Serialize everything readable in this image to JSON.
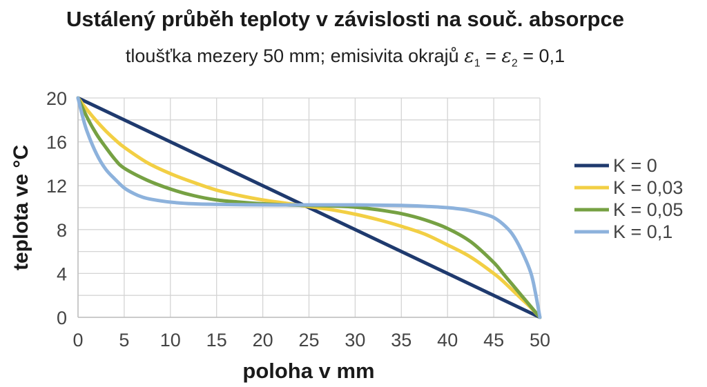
{
  "chart_data": {
    "type": "line",
    "title": "Ustálený průběh teploty v závislosti na souč. absorpce",
    "subtitle": {
      "prefix": "tloušťka mezery 50 mm; emisivita okrajů ",
      "eps": "ε",
      "sub1": "1",
      "eq1": " = ",
      "sub2": "2",
      "eq2": " = 0,1"
    },
    "xlabel": "poloha v mm",
    "ylabel": "teplota ve °C",
    "xlim": [
      0,
      50
    ],
    "ylim": [
      0,
      20
    ],
    "xticks": [
      "0",
      "5",
      "10",
      "15",
      "20",
      "25",
      "30",
      "35",
      "40",
      "45",
      "50"
    ],
    "yticks": [
      "0",
      "4",
      "8",
      "12",
      "16",
      "20"
    ],
    "grid": true,
    "legend_position": "right",
    "series": [
      {
        "name": "K = 0",
        "color": "#1f3a6e",
        "x": [
          0,
          50
        ],
        "y": [
          20,
          0
        ]
      },
      {
        "name": "K = 0,03",
        "color": "#f2cf44",
        "x": [
          0,
          1,
          2,
          3,
          4,
          5,
          7.5,
          10,
          12.5,
          15,
          17.5,
          20,
          22.5,
          25,
          27.5,
          30,
          32.5,
          35,
          37.5,
          40,
          42.5,
          45,
          46,
          47,
          48,
          49,
          50
        ],
        "y": [
          20,
          18.9,
          17.9,
          17.0,
          16.2,
          15.5,
          14.1,
          13.1,
          12.3,
          11.6,
          11.1,
          10.7,
          10.4,
          10.1,
          9.8,
          9.4,
          8.9,
          8.3,
          7.6,
          6.6,
          5.5,
          4.0,
          3.3,
          2.5,
          1.7,
          0.9,
          0
        ]
      },
      {
        "name": "K = 0,05",
        "color": "#76a143",
        "x": [
          0,
          1,
          2,
          3,
          4,
          5,
          7.5,
          10,
          12.5,
          15,
          17.5,
          20,
          22.5,
          25,
          27.5,
          30,
          32.5,
          35,
          37.5,
          40,
          42.5,
          45,
          46,
          47,
          48,
          49,
          50
        ],
        "y": [
          20,
          18.2,
          16.7,
          15.5,
          14.4,
          13.6,
          12.5,
          11.7,
          11.1,
          10.7,
          10.5,
          10.35,
          10.25,
          10.2,
          10.15,
          10.05,
          9.8,
          9.45,
          8.9,
          8.1,
          6.9,
          5.0,
          4.0,
          3.0,
          2.0,
          1.0,
          0
        ]
      },
      {
        "name": "K = 0,1",
        "color": "#8db2dc",
        "x": [
          0,
          0.5,
          1,
          2,
          3,
          4,
          5,
          6,
          7,
          8,
          10,
          12.5,
          15,
          20,
          25,
          30,
          35,
          38,
          40,
          42,
          44,
          45,
          46,
          47,
          48,
          49,
          49.5,
          50
        ],
        "y": [
          20,
          18.3,
          16.9,
          14.9,
          13.5,
          12.6,
          11.8,
          11.3,
          10.95,
          10.75,
          10.5,
          10.35,
          10.3,
          10.25,
          10.25,
          10.25,
          10.2,
          10.1,
          10.0,
          9.8,
          9.4,
          9.1,
          8.5,
          7.6,
          6.1,
          4.1,
          2.3,
          0
        ]
      }
    ]
  }
}
